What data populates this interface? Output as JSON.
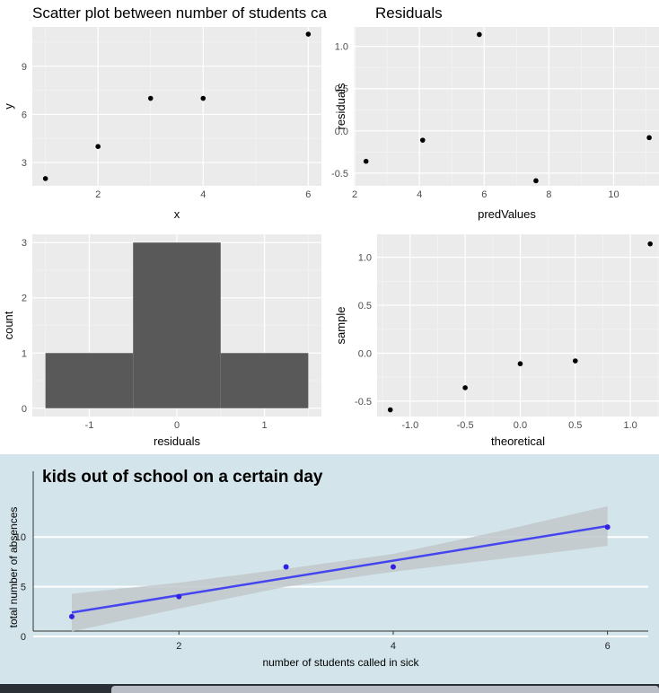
{
  "chart_data": [
    {
      "type": "scatter",
      "title": "Scatter plot between number of students ca",
      "xlabel": "x",
      "ylabel": "y",
      "xlim": [
        0.75,
        6.25
      ],
      "ylim": [
        1.55,
        11.45
      ],
      "xticks": [
        2,
        4,
        6
      ],
      "yticks": [
        3,
        6,
        9
      ],
      "points": [
        {
          "x": 1,
          "y": 2
        },
        {
          "x": 2,
          "y": 4
        },
        {
          "x": 3,
          "y": 7
        },
        {
          "x": 4,
          "y": 7
        },
        {
          "x": 6,
          "y": 11
        }
      ],
      "grid": true
    },
    {
      "type": "scatter",
      "title": "Residuals",
      "xlabel": "predValues",
      "ylabel": "residuals",
      "xlim": [
        1.97,
        11.43
      ],
      "ylim": [
        -0.65,
        1.23
      ],
      "xticks": [
        2,
        4,
        6,
        8,
        10
      ],
      "yticks": [
        -0.5,
        0.0,
        0.5,
        1.0
      ],
      "yticklabels": [
        "-0.5",
        "0.0",
        "0.5",
        "1.0"
      ],
      "points": [
        {
          "x": 2.35,
          "y": -0.36
        },
        {
          "x": 4.1,
          "y": -0.11
        },
        {
          "x": 5.85,
          "y": 1.14
        },
        {
          "x": 7.6,
          "y": -0.59
        },
        {
          "x": 11.1,
          "y": -0.08
        }
      ],
      "grid": true
    },
    {
      "type": "bar",
      "title": "",
      "xlabel": "residuals",
      "ylabel": "count",
      "xlim": [
        -1.65,
        1.65
      ],
      "ylim": [
        -0.15,
        3.15
      ],
      "xticks": [
        -1,
        0,
        1
      ],
      "yticks": [
        0,
        1,
        2,
        3
      ],
      "bins": [
        {
          "start": -1.5,
          "end": -0.5,
          "count": 1
        },
        {
          "start": -0.5,
          "end": 0.5,
          "count": 3
        },
        {
          "start": 0.5,
          "end": 1.5,
          "count": 1
        }
      ],
      "grid": true
    },
    {
      "type": "scatter",
      "title": "",
      "xlabel": "theoretical",
      "ylabel": "sample",
      "xlim": [
        -1.3,
        1.26
      ],
      "ylim": [
        -0.66,
        1.24
      ],
      "xticks": [
        -1.0,
        -0.5,
        0.0,
        0.5,
        1.0
      ],
      "xticklabels": [
        "-1.0",
        "-0.5",
        "0.0",
        "0.5",
        "1.0"
      ],
      "yticks": [
        -0.5,
        0.0,
        0.5,
        1.0
      ],
      "yticklabels": [
        "-0.5",
        "0.0",
        "0.5",
        "1.0"
      ],
      "points": [
        {
          "x": -1.18,
          "y": -0.59
        },
        {
          "x": -0.5,
          "y": -0.36
        },
        {
          "x": 0.0,
          "y": -0.11
        },
        {
          "x": 0.5,
          "y": -0.08
        },
        {
          "x": 1.18,
          "y": 1.14
        }
      ],
      "grid": true
    },
    {
      "type": "scatter",
      "title": "kids out of school on a certain day",
      "xlabel": "number of students called in sick",
      "ylabel": "total number of absences",
      "xlim": [
        0.64,
        6.38
      ],
      "ylim": [
        0,
        13.9
      ],
      "xticks": [
        2,
        4,
        6
      ],
      "yticks": [
        0,
        5,
        10
      ],
      "points": [
        {
          "x": 1,
          "y": 2
        },
        {
          "x": 2,
          "y": 4
        },
        {
          "x": 3,
          "y": 7
        },
        {
          "x": 4,
          "y": 7
        },
        {
          "x": 6,
          "y": 11
        }
      ],
      "regression_line": [
        {
          "x": 1,
          "y": 2.4
        },
        {
          "x": 6,
          "y": 11.1
        }
      ],
      "confidence_band": {
        "x": [
          1,
          2,
          3,
          4,
          5,
          6
        ],
        "upper": [
          4.3,
          5.4,
          6.8,
          8.3,
          10.6,
          13.1
        ],
        "lower": [
          0.5,
          2.8,
          5.0,
          6.5,
          7.8,
          9.1
        ]
      },
      "grid": true,
      "colors": {
        "background": "#d3e5eb",
        "points": "#3320e6",
        "line": "#4545f0",
        "band": "#c1c8cb"
      }
    }
  ]
}
